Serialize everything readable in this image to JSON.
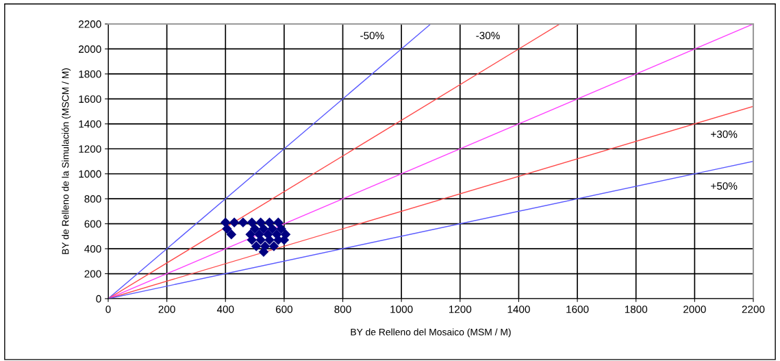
{
  "chart_data": {
    "type": "scatter",
    "xlabel": "BY de Relleno del Mosaico (MSM / M)",
    "ylabel": "BY de Relleno de la Simulación (MSCM / M)",
    "xlim": [
      0,
      2200
    ],
    "ylim": [
      0,
      2200
    ],
    "xticks": [
      0,
      200,
      400,
      600,
      800,
      1000,
      1200,
      1400,
      1600,
      1800,
      2000,
      2200
    ],
    "yticks": [
      0,
      200,
      400,
      600,
      800,
      1000,
      1200,
      1400,
      1600,
      1800,
      2000,
      2200
    ],
    "grid": true,
    "legend": false,
    "series": [
      {
        "color": "#000080",
        "marker": "diamond",
        "x": [
          400,
          430,
          460,
          490,
          520,
          550,
          580,
          405,
          500,
          530,
          560,
          590,
          420,
          485,
          515,
          545,
          575,
          605,
          490,
          520,
          550,
          580,
          600,
          505,
          535,
          565,
          530
        ],
        "values": [
          610,
          610,
          610,
          610,
          610,
          610,
          610,
          560,
          560,
          560,
          560,
          560,
          515,
          515,
          515,
          515,
          515,
          515,
          470,
          470,
          470,
          470,
          470,
          420,
          420,
          420,
          375
        ]
      },
      {
        "type": "line",
        "marker": "none",
        "color": "#5a5aff",
        "x": [
          0,
          1100
        ],
        "values": [
          0,
          2200
        ]
      },
      {
        "type": "line",
        "marker": "none",
        "color": "#ff4a4a",
        "x": [
          0,
          1540
        ],
        "values": [
          0,
          2200
        ]
      },
      {
        "type": "line",
        "marker": "none",
        "color": "#ff40ff",
        "x": [
          0,
          2200
        ],
        "values": [
          0,
          2200
        ]
      },
      {
        "type": "line",
        "marker": "none",
        "color": "#ff4a4a",
        "x": [
          0,
          2200
        ],
        "values": [
          0,
          1540
        ]
      },
      {
        "type": "line",
        "marker": "none",
        "color": "#5a5aff",
        "x": [
          0,
          2200
        ],
        "values": [
          0,
          1100
        ]
      }
    ],
    "annotations": [
      {
        "text": "-50%",
        "x": 900,
        "y": 2100
      },
      {
        "text": "-30%",
        "x": 1295,
        "y": 2100
      },
      {
        "text": "+30%",
        "x": 2100,
        "y": 1310
      },
      {
        "text": "+50%",
        "x": 2100,
        "y": 895
      }
    ]
  }
}
